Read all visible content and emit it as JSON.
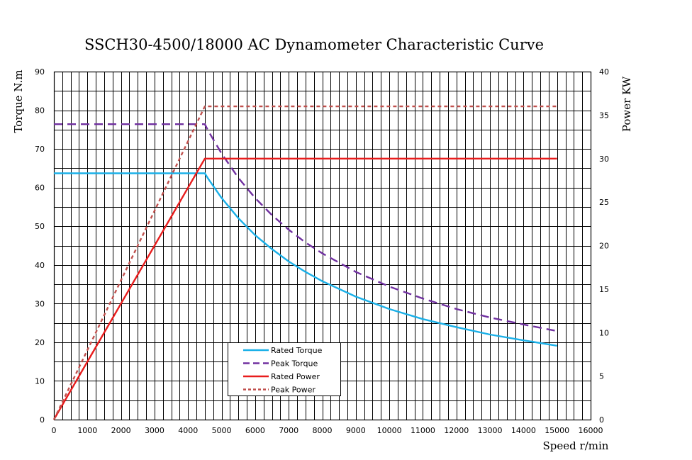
{
  "chart_data": {
    "type": "line",
    "title": "SSCH30-4500/18000 AC Dynamometer Characteristic Curve",
    "xlabel": "Speed r/min",
    "ylabel": "Torque N.m",
    "y2label": "Power KW",
    "xlim": [
      0,
      16000
    ],
    "ylim": [
      0,
      90
    ],
    "y2lim": [
      0,
      40
    ],
    "xticks": [
      0,
      1000,
      2000,
      3000,
      4000,
      5000,
      6000,
      7000,
      8000,
      9000,
      10000,
      11000,
      12000,
      13000,
      14000,
      15000,
      16000
    ],
    "yticks": [
      0,
      10,
      20,
      30,
      40,
      50,
      60,
      70,
      80,
      90
    ],
    "y2ticks": [
      0,
      5,
      10,
      15,
      20,
      25,
      30,
      35,
      40
    ],
    "grid": true,
    "legend_position": "bottom-center",
    "series": [
      {
        "name": "Rated Torque",
        "axis": "left",
        "color": "#1ab0e8",
        "dash": "solid",
        "x": [
          0,
          4500,
          4600,
          5000,
          5500,
          6000,
          6500,
          7000,
          7500,
          8000,
          9000,
          10000,
          11000,
          12000,
          13000,
          14000,
          15000
        ],
        "y": [
          63.7,
          63.7,
          62.3,
          57.3,
          52.1,
          47.7,
          44.1,
          40.9,
          38.2,
          35.8,
          31.8,
          28.6,
          26.0,
          23.9,
          22.0,
          20.5,
          19.1
        ]
      },
      {
        "name": "Peak Torque",
        "axis": "left",
        "color": "#7030a0",
        "dash": "dash",
        "x": [
          0,
          4500,
          4600,
          5000,
          5500,
          6000,
          6500,
          7000,
          7500,
          8000,
          9000,
          10000,
          11000,
          12000,
          13000,
          14000,
          15000
        ],
        "y": [
          76.4,
          76.4,
          74.7,
          68.8,
          62.5,
          57.3,
          52.9,
          49.1,
          45.8,
          43.0,
          38.2,
          34.4,
          31.3,
          28.6,
          26.4,
          24.6,
          22.9
        ]
      },
      {
        "name": "Rated Power",
        "axis": "right",
        "color": "#e81c1c",
        "dash": "solid",
        "x": [
          0,
          4500,
          15000
        ],
        "y": [
          0,
          30,
          30
        ]
      },
      {
        "name": "Peak Power",
        "axis": "right",
        "color": "#c0504d",
        "dash": "dot",
        "x": [
          0,
          4500,
          15000
        ],
        "y": [
          0,
          36,
          36
        ]
      }
    ]
  }
}
